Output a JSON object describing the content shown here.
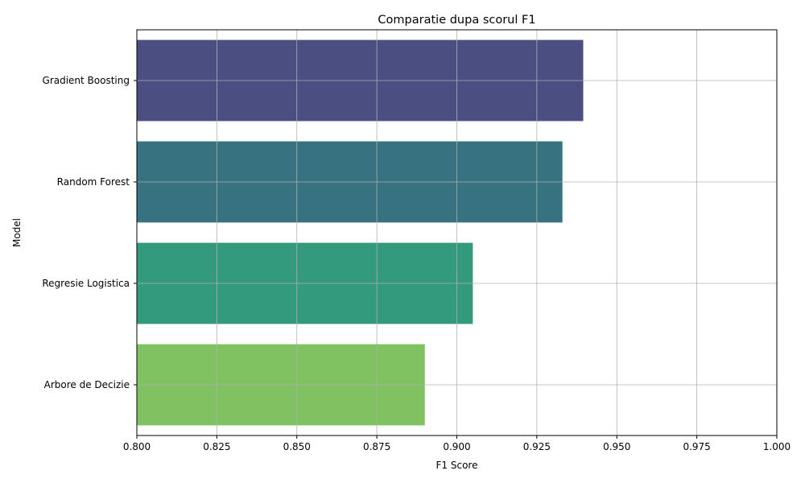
{
  "chart_data": {
    "type": "bar",
    "orientation": "horizontal",
    "title": "Comparatie dupa scorul F1",
    "xlabel": "F1 Score",
    "ylabel": "Model",
    "xlim": [
      0.8,
      1.0
    ],
    "x_ticks": [
      "0.800",
      "0.825",
      "0.850",
      "0.875",
      "0.900",
      "0.925",
      "0.950",
      "0.975",
      "1.000"
    ],
    "grid": true,
    "categories": [
      "Gradient Boosting",
      "Random Forest",
      "Regresie Logistica",
      "Arbore de Decizie"
    ],
    "values": [
      0.9395,
      0.933,
      0.905,
      0.89
    ],
    "colors": [
      "#4a4e80",
      "#367280",
      "#339a7d",
      "#80c261"
    ]
  }
}
